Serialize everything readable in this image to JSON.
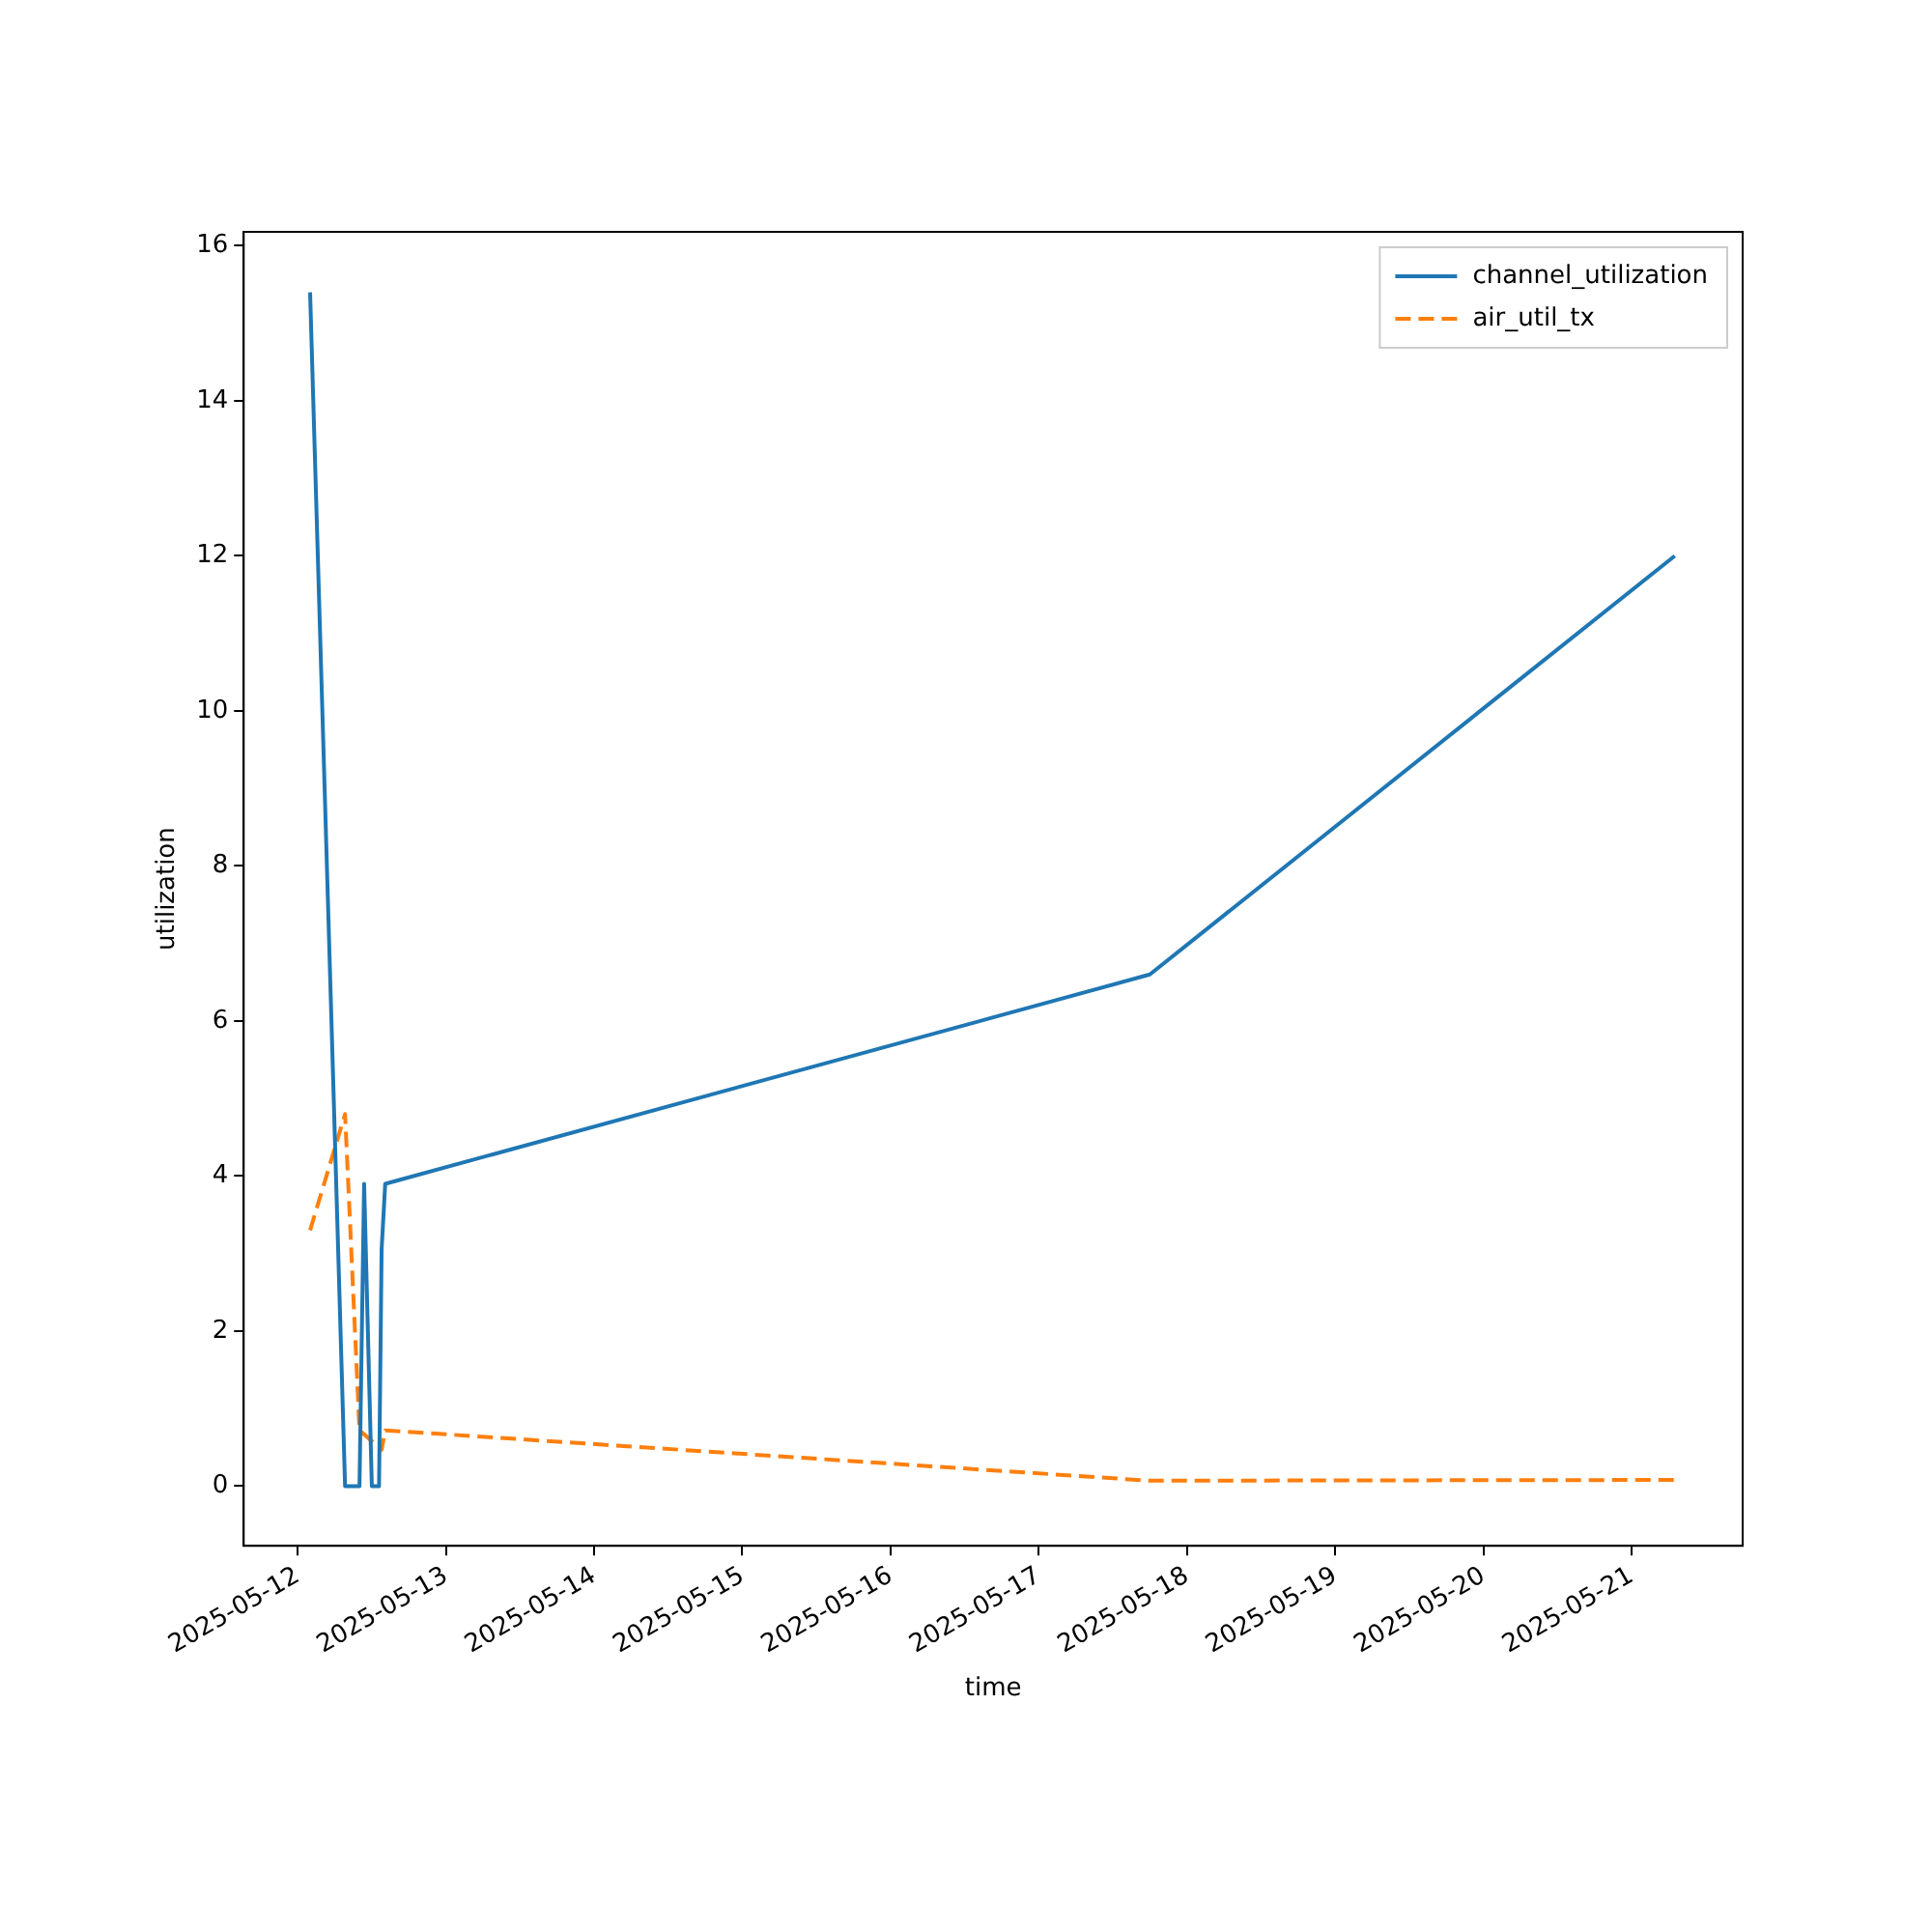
{
  "chart_data": {
    "type": "line",
    "xlabel": "time",
    "ylabel": "utilization",
    "x": [
      "2025-05-12T02:00",
      "2025-05-12T07:40",
      "2025-05-12T10:00",
      "2025-05-12T10:45",
      "2025-05-12T12:00",
      "2025-05-12T13:10",
      "2025-05-12T13:35",
      "2025-05-12T14:10",
      "2025-05-17T18:00",
      "2025-05-21T07:00"
    ],
    "series": [
      {
        "name": "channel_utilization",
        "color": "#1f77b4",
        "line_style": "solid",
        "values": [
          15.4,
          0,
          0,
          3.9,
          0,
          0,
          3.05,
          3.9,
          6.6,
          12.0
        ]
      },
      {
        "name": "air_util_tx",
        "color": "#ff7f0e",
        "line_style": "dashed",
        "x": [
          "2025-05-12T02:00",
          "2025-05-12T07:40",
          "2025-05-12T10:00",
          "2025-05-12T13:35",
          "2025-05-12T14:10",
          "2025-05-17T18:00",
          "2025-05-21T07:00"
        ],
        "values": [
          3.3,
          4.8,
          0.72,
          0.47,
          0.72,
          0.07,
          0.08
        ]
      }
    ],
    "xlim": [
      "2025-05-11T15:15",
      "2025-05-21T18:00"
    ],
    "xticks": [
      "2025-05-12",
      "2025-05-13",
      "2025-05-14",
      "2025-05-15",
      "2025-05-16",
      "2025-05-17",
      "2025-05-18",
      "2025-05-19",
      "2025-05-20",
      "2025-05-21"
    ],
    "ylim": [
      -0.77,
      16.18
    ],
    "yticks": [
      0,
      2,
      4,
      6,
      8,
      10,
      12,
      14,
      16
    ],
    "legend": "top right",
    "grid": false
  }
}
